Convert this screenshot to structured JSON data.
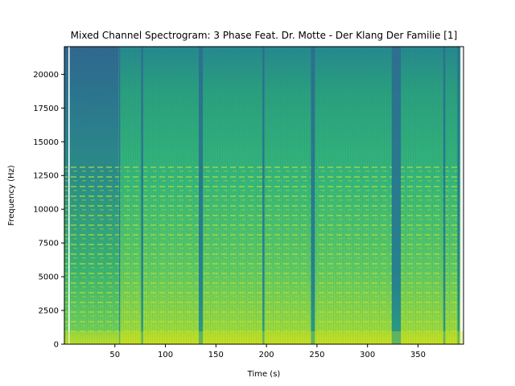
{
  "chart_data": {
    "type": "heatmap",
    "title": "Mixed Channel Spectrogram: 3 Phase Feat. Dr. Motte - Der Klang Der Familie [1]",
    "xlabel": "Time (s)",
    "ylabel": "Frequency (Hz)",
    "xlim": [
      0,
      395
    ],
    "ylim": [
      0,
      22050
    ],
    "xticks": [
      50,
      100,
      150,
      200,
      250,
      300,
      350
    ],
    "yticks": [
      0,
      2500,
      5000,
      7500,
      10000,
      12500,
      15000,
      17500,
      20000
    ],
    "colormap": "viridis",
    "quiet_intervals_s": [
      [
        4,
        5
      ],
      [
        54,
        55
      ],
      [
        76,
        78
      ],
      [
        133,
        137
      ],
      [
        196,
        198
      ],
      [
        244,
        248
      ],
      [
        324,
        333
      ],
      [
        375,
        377
      ],
      [
        389,
        391
      ]
    ],
    "colors": {
      "low": "#2c728e",
      "mid": "#2aa27c",
      "high": "#b5de2b",
      "gap": "#ffffff"
    }
  }
}
